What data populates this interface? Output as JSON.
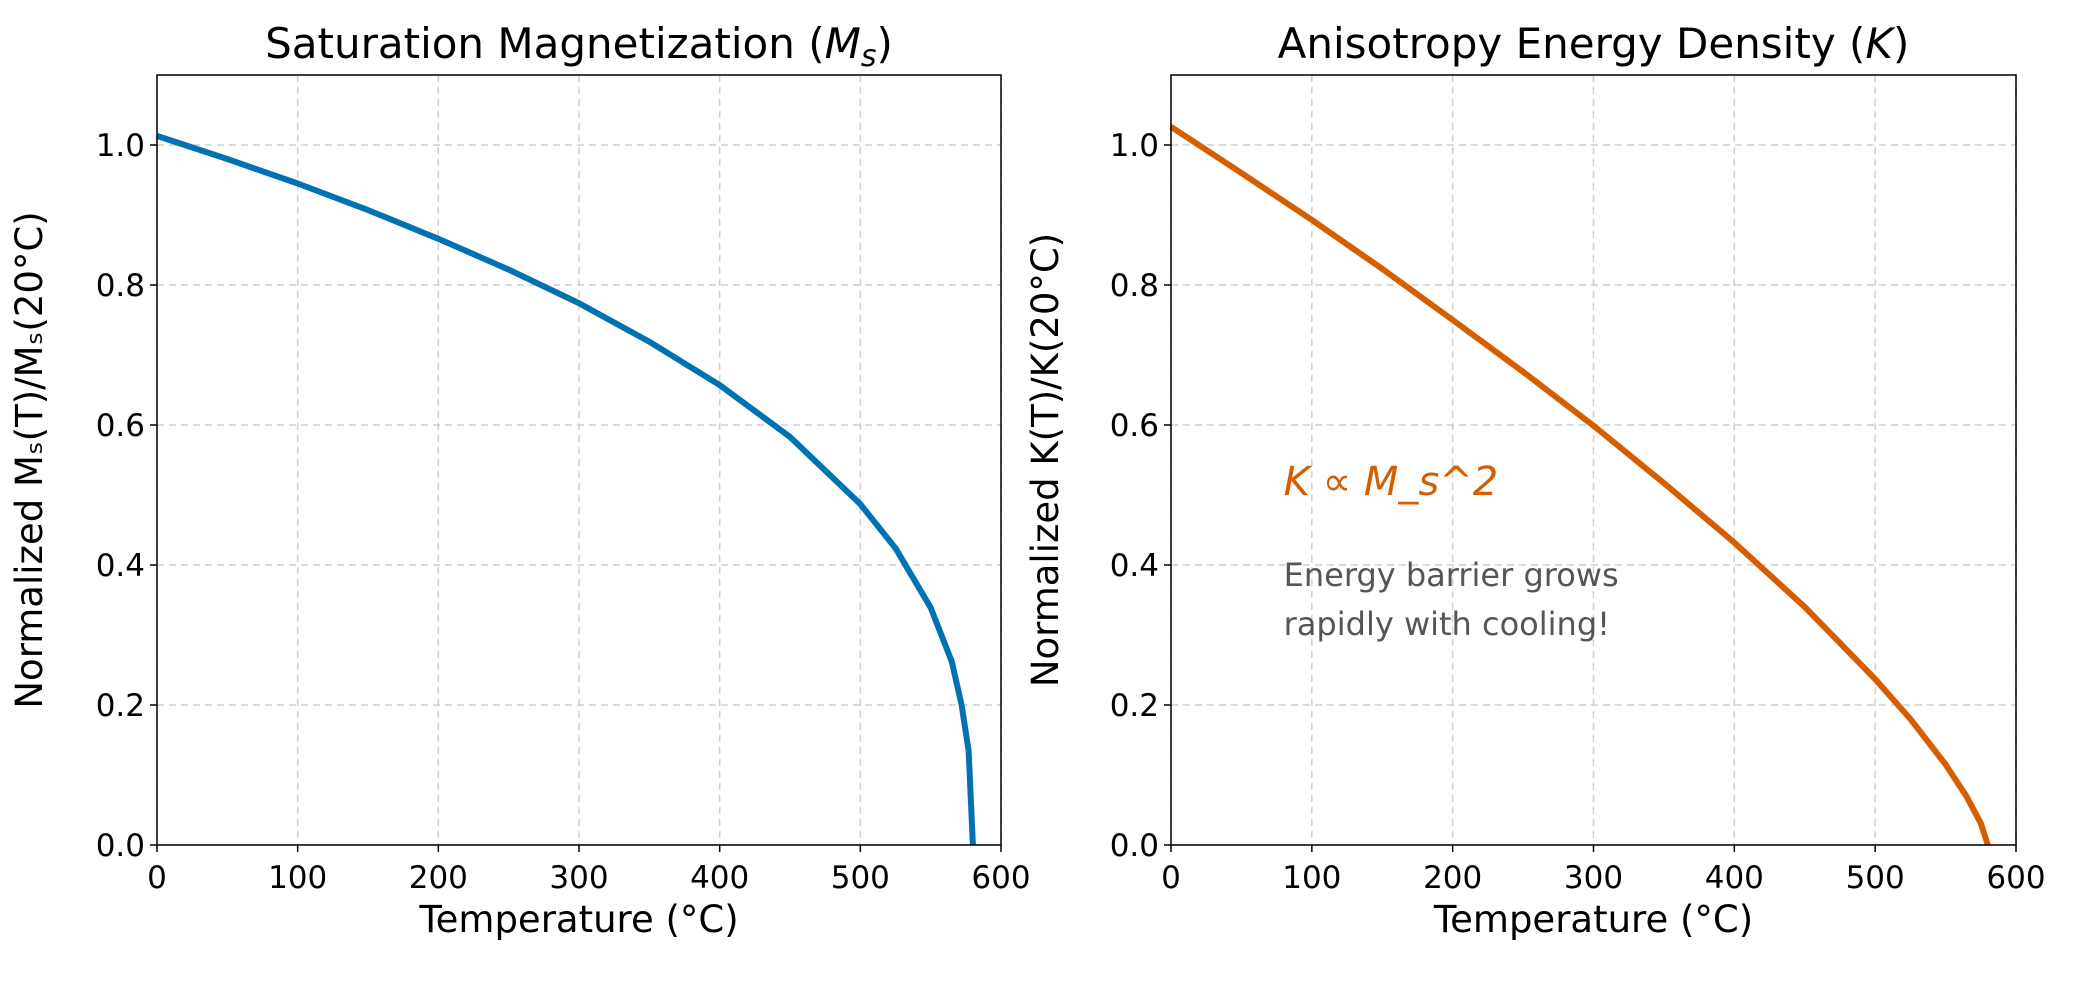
{
  "chart_data": [
    {
      "type": "line",
      "title": "Saturation Magnetization (M_s)",
      "title_parts": {
        "main": "Saturation Magnetization (",
        "symbol": "M",
        "sub": "s",
        "close": ")"
      },
      "xlabel": "Temperature (°C)",
      "ylabel": "Normalized M_s(T)/M_s(20°C)",
      "ylabel_text": "Normalized Mₛ(T)/Mₛ(20°C)",
      "xlim": [
        0,
        600
      ],
      "ylim": [
        0,
        1.1
      ],
      "xticks": [
        "0",
        "100",
        "200",
        "300",
        "400",
        "500",
        "600"
      ],
      "yticks": [
        "0.0",
        "0.2",
        "0.4",
        "0.6",
        "0.8",
        "1.0"
      ],
      "grid": true,
      "color": "#0072B2",
      "x": [
        0,
        50,
        100,
        150,
        200,
        250,
        300,
        350,
        400,
        450,
        500,
        525,
        550,
        565,
        572,
        577,
        580
      ],
      "y": [
        1.013,
        0.98,
        0.945,
        0.907,
        0.866,
        0.822,
        0.774,
        0.719,
        0.657,
        0.583,
        0.487,
        0.424,
        0.339,
        0.262,
        0.2,
        0.135,
        0.0
      ]
    },
    {
      "type": "line",
      "title": "Anisotropy Energy Density (K)",
      "title_parts": {
        "main": "Anisotropy Energy Density (",
        "symbol": "K",
        "close": ")"
      },
      "xlabel": "Temperature (°C)",
      "ylabel": "Normalized K(T)/K(20°C)",
      "ylabel_text": "Normalized K(T)/K(20°C)",
      "xlim": [
        0,
        600
      ],
      "ylim": [
        0,
        1.1
      ],
      "xticks": [
        "0",
        "100",
        "200",
        "300",
        "400",
        "500",
        "600"
      ],
      "yticks": [
        "0.0",
        "0.2",
        "0.4",
        "0.6",
        "0.8",
        "1.0"
      ],
      "grid": true,
      "color": "#D55E00",
      "x": [
        0,
        50,
        100,
        150,
        200,
        250,
        300,
        350,
        400,
        450,
        500,
        525,
        550,
        565,
        575,
        580
      ],
      "y": [
        1.026,
        0.96,
        0.893,
        0.823,
        0.75,
        0.676,
        0.599,
        0.517,
        0.432,
        0.34,
        0.237,
        0.18,
        0.115,
        0.069,
        0.031,
        0.0
      ],
      "annotations": [
        {
          "text": "K ∝ M_s^2",
          "color": "#D55E00",
          "x": 80,
          "y": 0.5
        },
        {
          "text": "Energy barrier grows",
          "color": "#555555",
          "x": 80,
          "y": 0.37
        },
        {
          "text": "rapidly with cooling!",
          "color": "#555555",
          "x": 80,
          "y": 0.3
        }
      ]
    }
  ]
}
